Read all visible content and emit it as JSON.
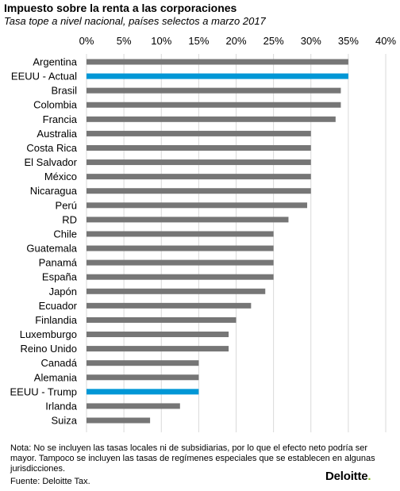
{
  "chart_data": {
    "type": "bar",
    "orientation": "horizontal",
    "title": "Impuesto sobre la renta a las corporaciones",
    "subtitle": "Tasa tope a nivel nacional, países selectos a marzo 2017",
    "categories": [
      "Argentina",
      "EEUU - Actual",
      "Brasil",
      "Colombia",
      "Francia",
      "Australia",
      "Costa Rica",
      "El Salvador",
      "México",
      "Nicaragua",
      "Perú",
      "RD",
      "Chile",
      "Guatemala",
      "Panamá",
      "España",
      "Japón",
      "Ecuador",
      "Finlandia",
      "Luxemburgo",
      "Reino Unido",
      "Canadá",
      "Alemania",
      "EEUU - Trump",
      "Irlanda",
      "Suiza"
    ],
    "values": [
      35,
      35,
      34,
      34,
      33.3,
      30,
      30,
      30,
      30,
      30,
      29.5,
      27,
      25,
      25,
      25,
      25,
      23.9,
      22,
      20,
      19,
      19,
      15,
      15,
      15,
      12.5,
      8.5
    ],
    "highlight": [
      "EEUU - Actual",
      "EEUU - Trump"
    ],
    "xlim": [
      0,
      40
    ],
    "xticks": [
      "0%",
      "5%",
      "10%",
      "15%",
      "20%",
      "25%",
      "30%",
      "35%",
      "40%"
    ],
    "xlabel": "",
    "ylabel": "",
    "grid": true,
    "bar_color": "#767676",
    "highlight_color": "#0097d6"
  },
  "note": "Nota: No se incluyen las tasas locales ni de subsidiarias, por lo que el efecto neto podría ser mayor. Tampoco se incluyen las tasas de regímenes especiales que se establecen en algunas jurisdicciones.",
  "source": "Fuente: Deloitte Tax.",
  "logo": {
    "text": "Deloitte",
    "dot": ".",
    "dot_color": "#86bc25"
  }
}
